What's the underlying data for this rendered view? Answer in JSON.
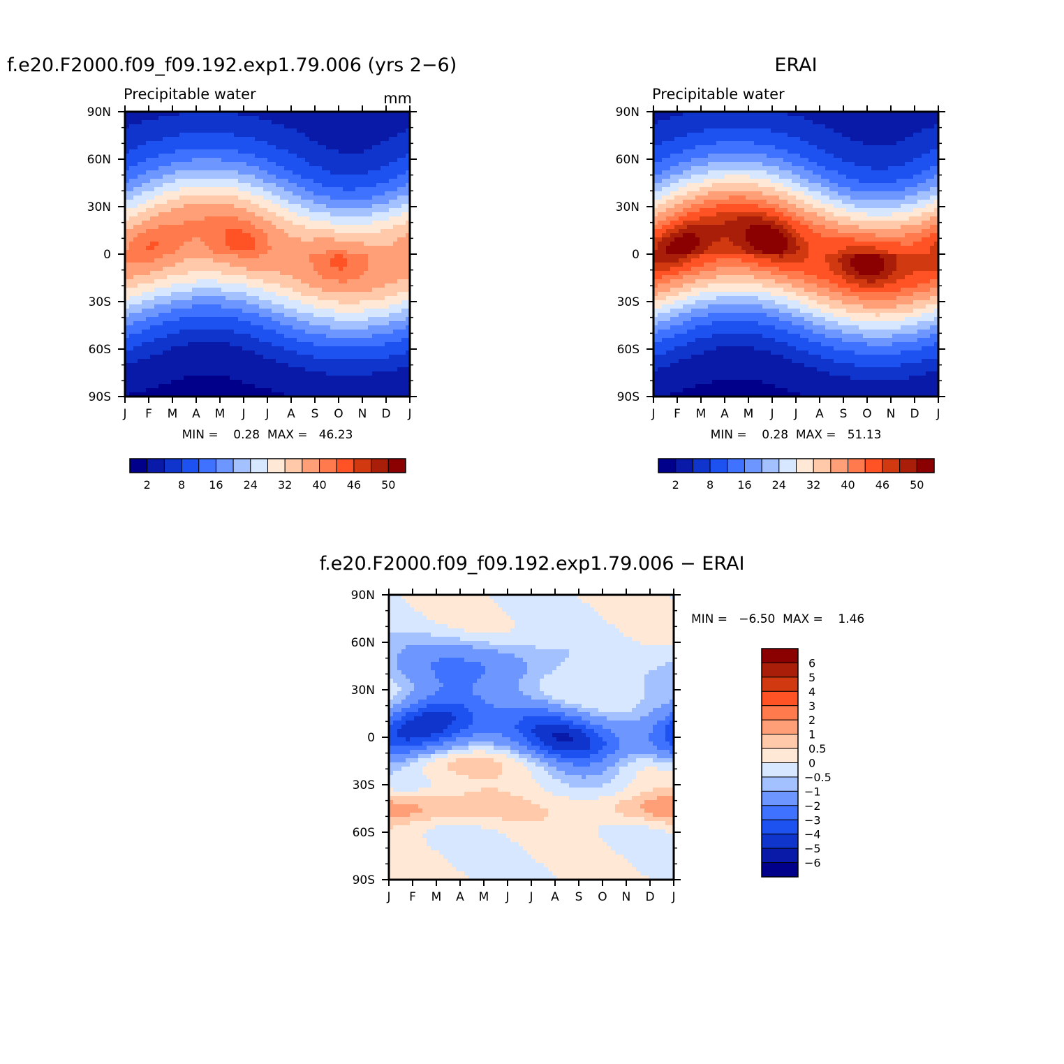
{
  "palette": {
    "abs": [
      "#00008b",
      "#0a1aa8",
      "#0f35cc",
      "#1d52f0",
      "#3f72ff",
      "#6d96ff",
      "#a3c1ff",
      "#d6e7ff",
      "#ffe8d6",
      "#ffc9aa",
      "#ff9f78",
      "#ff7a4d",
      "#ff5225",
      "#d13a10",
      "#a81e08",
      "#8b0000"
    ],
    "diff": [
      "#00008b",
      "#0a1aa8",
      "#0f35cc",
      "#1d52f0",
      "#3f72ff",
      "#6d96ff",
      "#a3c1ff",
      "#d6e7ff",
      "#ffe8d6",
      "#ffc9aa",
      "#ff9f78",
      "#ff7a4d",
      "#ff5225",
      "#d13a10",
      "#a81e08",
      "#8b0000"
    ]
  },
  "chart_data": [
    {
      "type": "heatmap",
      "title": "f.e20.F2000.f09_f09.192.exp1.79.006 (yrs 2−6)",
      "subtitle": "Precipitable water",
      "units": "mm",
      "x_ticks": [
        "J",
        "F",
        "M",
        "A",
        "M",
        "J",
        "J",
        "A",
        "S",
        "O",
        "N",
        "D",
        "J"
      ],
      "y_ticks": [
        "90N",
        "60N",
        "30N",
        "0",
        "30S",
        "60S",
        "90S"
      ],
      "ylim": [
        -90,
        90
      ],
      "stats_text": "MIN =    0.28  MAX =   46.23",
      "min": 0.28,
      "max": 46.23,
      "colorbar_labels": [
        "2",
        "8",
        "16",
        "24",
        "32",
        "40",
        "46",
        "50"
      ],
      "colorbar_label_positions": [
        1,
        3,
        5,
        7,
        9,
        11,
        13,
        15
      ],
      "field": {
        "eq_lat0": 2,
        "eq_amp": 6,
        "peak": 40,
        "pole_n": 3,
        "pole_s": 1,
        "hemi_amp": 5
      }
    },
    {
      "type": "heatmap",
      "title": "ERAI",
      "subtitle": "Precipitable water",
      "units": "",
      "x_ticks": [
        "J",
        "F",
        "M",
        "A",
        "M",
        "J",
        "J",
        "A",
        "S",
        "O",
        "N",
        "D",
        "J"
      ],
      "y_ticks": [
        "90N",
        "60N",
        "30N",
        "0",
        "30S",
        "60S",
        "90S"
      ],
      "ylim": [
        -90,
        90
      ],
      "stats_text": "MIN =    0.28  MAX =   51.13",
      "min": 0.28,
      "max": 51.13,
      "colorbar_labels": [
        "2",
        "8",
        "16",
        "24",
        "32",
        "40",
        "46",
        "50"
      ],
      "colorbar_label_positions": [
        1,
        3,
        5,
        7,
        9,
        11,
        13,
        15
      ],
      "field": {
        "eq_lat0": 2,
        "eq_amp": 7,
        "peak": 48,
        "pole_n": 3,
        "pole_s": 1,
        "hemi_amp": 5
      }
    },
    {
      "type": "heatmap",
      "title": "f.e20.F2000.f09_f09.192.exp1.79.006 − ERAI",
      "subtitle": "",
      "units": "",
      "x_ticks": [
        "J",
        "F",
        "M",
        "A",
        "M",
        "J",
        "J",
        "A",
        "S",
        "O",
        "N",
        "D",
        "J"
      ],
      "y_ticks": [
        "90N",
        "60N",
        "30N",
        "0",
        "30S",
        "60S",
        "90S"
      ],
      "ylim": [
        -90,
        90
      ],
      "stats_text": "MIN =   −6.50  MAX =    1.46",
      "min": -6.5,
      "max": 1.46,
      "colorbar_levels": [
        "6",
        "5",
        "4",
        "3",
        "2",
        "1",
        "0.5",
        "0",
        "−0.5",
        "−1",
        "−2",
        "−3",
        "−4",
        "−5",
        "−6"
      ]
    }
  ]
}
